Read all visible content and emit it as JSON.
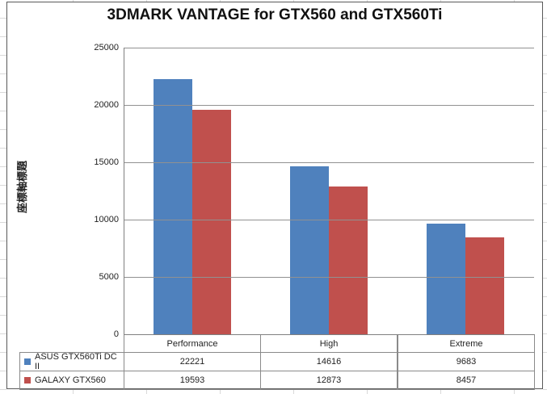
{
  "title": "3DMARK VANTAGE for GTX560 and GTX560Ti",
  "y_axis": {
    "title": "座標軸標題",
    "tick_labels": [
      "0",
      "5000",
      "10000",
      "15000",
      "20000",
      "25000"
    ],
    "min": 0,
    "max": 25000,
    "tick_interval": 5000
  },
  "chart_data": {
    "type": "bar",
    "title": "3DMARK VANTAGE for GTX560 and GTX560Ti",
    "categories": [
      "Performance",
      "High",
      "Extreme"
    ],
    "series": [
      {
        "name": "ASUS GTX560Ti DC II",
        "color": "#4F81BD",
        "values": [
          22221,
          14616,
          9683
        ]
      },
      {
        "name": "GALAXY GTX560",
        "color": "#C0504D",
        "values": [
          19593,
          12873,
          8457
        ]
      }
    ],
    "xlabel": "",
    "ylabel": "座標軸標題",
    "ylim": [
      0,
      25000
    ],
    "grid": true,
    "legend_position": "bottom-data-table"
  },
  "colors": {
    "series_blue": "#4F81BD",
    "series_red": "#C0504D",
    "gridline": "#919191",
    "axis": "#808080",
    "table_border": "#8a8a8a",
    "chart_border": "#595959",
    "text": "#1f1f1f"
  }
}
